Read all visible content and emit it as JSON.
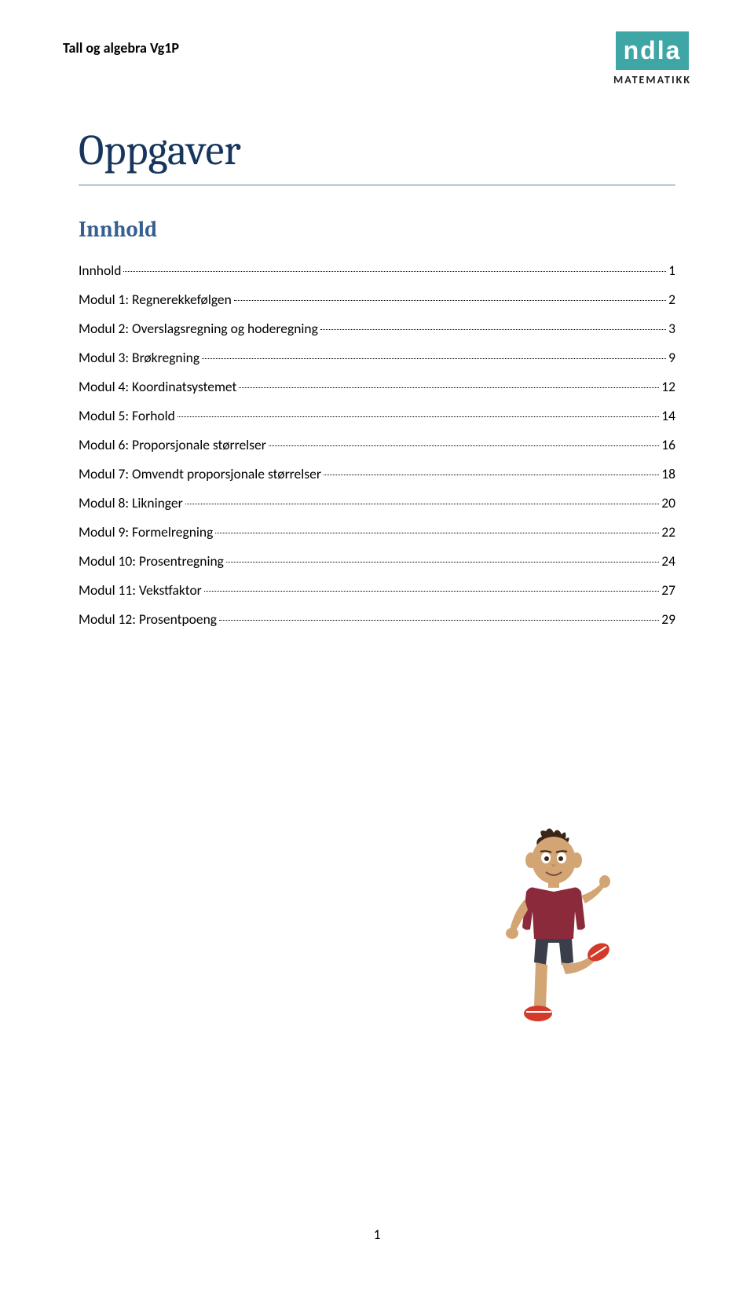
{
  "header": {
    "left_text": "Tall og algebra Vg1P",
    "logo_text": "ndla",
    "logo_subtitle": "MATEMATIKK"
  },
  "page_title": "Oppgaver",
  "section_title": "Innhold",
  "toc_items": [
    {
      "label": "Innhold",
      "page": "1"
    },
    {
      "label": "Modul 1: Regnerekkefølgen",
      "page": "2"
    },
    {
      "label": "Modul 2: Overslagsregning og hoderegning",
      "page": "3"
    },
    {
      "label": "Modul 3: Brøkregning",
      "page": "9"
    },
    {
      "label": "Modul 4: Koordinatsystemet",
      "page": "12"
    },
    {
      "label": "Modul 5: Forhold",
      "page": "14"
    },
    {
      "label": "Modul 6: Proporsjonale størrelser",
      "page": "16"
    },
    {
      "label": "Modul 7: Omvendt proporsjonale størrelser",
      "page": "18"
    },
    {
      "label": "Modul 8: Likninger",
      "page": "20"
    },
    {
      "label": "Modul 9: Formelregning",
      "page": "22"
    },
    {
      "label": "Modul 10: Prosentregning",
      "page": "24"
    },
    {
      "label": "Modul 11: Vekstfaktor",
      "page": "27"
    },
    {
      "label": "Modul 12: Prosentpoeng",
      "page": "29"
    }
  ],
  "page_number": "1",
  "colors": {
    "logo_bg": "#3fa6a6",
    "title_color": "#17365d",
    "section_color": "#365f91",
    "title_border": "#4f81bd"
  },
  "character": {
    "shirt_color": "#8b2a3a",
    "skin_color": "#d4a574",
    "pants_color": "#3a3d4a",
    "shoe_color": "#d43a2a",
    "hair_color": "#3a2518"
  }
}
